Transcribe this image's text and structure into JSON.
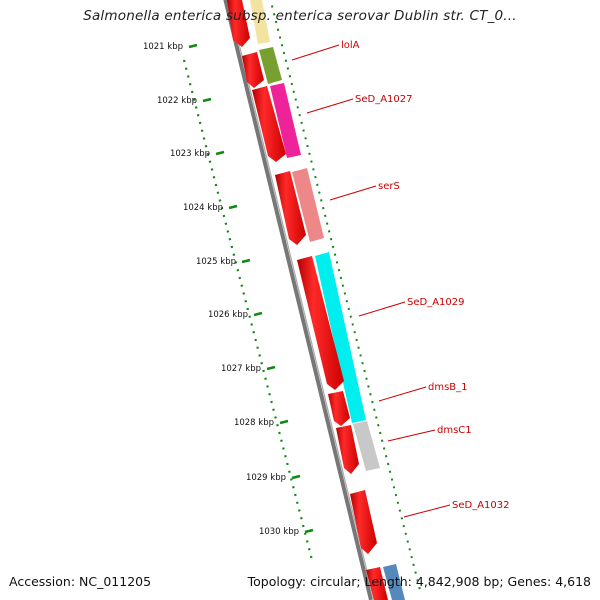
{
  "title": "Salmonella enterica subsp. enterica serovar Dublin str. CT_0...",
  "footer": {
    "accession": "Accession: NC_011205",
    "summary": "Topology: circular; Length: 4,842,908 bp; Genes: 4,618"
  },
  "kbp_ticks": [
    "1021 kbp",
    "1022 kbp",
    "1023 kbp",
    "1024 kbp",
    "1025 kbp",
    "1026 kbp",
    "1027 kbp",
    "1028 kbp",
    "1029 kbp",
    "1030 kbp"
  ],
  "gene_labels": [
    "lolA",
    "SeD_A1027",
    "serS",
    "SeD_A1029",
    "dmsB_1",
    "dmsC1",
    "SeD_A1032"
  ],
  "colors": {
    "backbone": "#777777",
    "forward_strand": "#ee0000",
    "label_text": "#cc0000",
    "tick": "#118811",
    "lolA": "#77a030",
    "SeD_A1027": "#ee2299",
    "serS": "#ee8888",
    "SeD_A1029": "#00eeee",
    "dmsC1": "#c8c8c8",
    "top_gene": "#f2e4a0",
    "bottom_gene": "#5588bb"
  }
}
